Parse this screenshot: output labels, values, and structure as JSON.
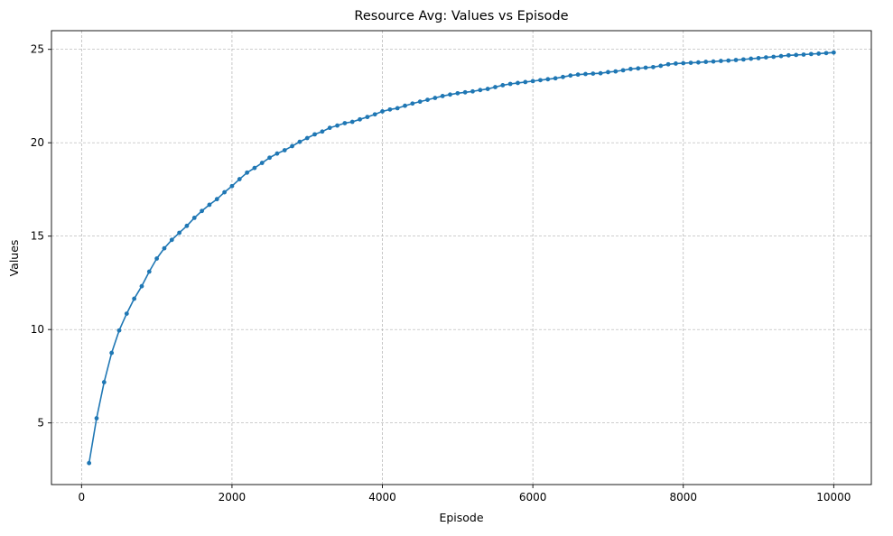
{
  "chart_data": {
    "type": "line",
    "title": "Resource Avg: Values vs Episode",
    "xlabel": "Episode",
    "ylabel": "Values",
    "xlim": [
      -400,
      10500
    ],
    "ylim": [
      1.7,
      26.0
    ],
    "xticks": [
      0,
      2000,
      4000,
      6000,
      8000,
      10000
    ],
    "yticks": [
      5,
      10,
      15,
      20,
      25
    ],
    "grid": true,
    "grid_style": "dashed",
    "marker": "circle",
    "colors": {
      "line": "#1f77b4",
      "grid": "#b0b0b0",
      "axes": "#000000"
    },
    "series": [
      {
        "x": [
          100,
          200,
          300,
          400,
          500,
          600,
          700,
          800,
          900,
          1000,
          1100,
          1200,
          1300,
          1400,
          1500,
          1600,
          1700,
          1800,
          1900,
          2000,
          2100,
          2200,
          2300,
          2400,
          2500,
          2600,
          2700,
          2800,
          2900,
          3000,
          3100,
          3200,
          3300,
          3400,
          3500,
          3600,
          3700,
          3800,
          3900,
          4000,
          4100,
          4200,
          4300,
          4400,
          4500,
          4600,
          4700,
          4800,
          4900,
          5000,
          5100,
          5200,
          5300,
          5400,
          5500,
          5600,
          5700,
          5800,
          5900,
          6000,
          6100,
          6200,
          6300,
          6400,
          6500,
          6600,
          6700,
          6800,
          6900,
          7000,
          7100,
          7200,
          7300,
          7400,
          7500,
          7600,
          7700,
          7800,
          7900,
          8000,
          8100,
          8200,
          8300,
          8400,
          8500,
          8600,
          8700,
          8800,
          8900,
          9000,
          9100,
          9200,
          9300,
          9400,
          9500,
          9600,
          9700,
          9800,
          9900,
          10000
        ],
        "values": [
          2.85,
          5.25,
          7.18,
          8.75,
          9.95,
          10.85,
          11.65,
          12.32,
          13.1,
          13.8,
          14.35,
          14.8,
          15.18,
          15.55,
          15.98,
          16.35,
          16.68,
          16.98,
          17.35,
          17.68,
          18.05,
          18.4,
          18.65,
          18.92,
          19.2,
          19.42,
          19.6,
          19.82,
          20.05,
          20.25,
          20.45,
          20.6,
          20.8,
          20.92,
          21.05,
          21.12,
          21.25,
          21.38,
          21.52,
          21.68,
          21.78,
          21.85,
          21.98,
          22.1,
          22.2,
          22.3,
          22.4,
          22.5,
          22.58,
          22.65,
          22.7,
          22.75,
          22.82,
          22.88,
          22.98,
          23.08,
          23.15,
          23.2,
          23.25,
          23.3,
          23.35,
          23.4,
          23.45,
          23.52,
          23.6,
          23.65,
          23.68,
          23.7,
          23.72,
          23.78,
          23.82,
          23.88,
          23.95,
          23.98,
          24.02,
          24.05,
          24.12,
          24.2,
          24.24,
          24.26,
          24.28,
          24.3,
          24.33,
          24.35,
          24.38,
          24.4,
          24.43,
          24.46,
          24.5,
          24.53,
          24.57,
          24.6,
          24.64,
          24.68,
          24.7,
          24.72,
          24.75,
          24.77,
          24.8,
          24.83
        ]
      }
    ]
  }
}
